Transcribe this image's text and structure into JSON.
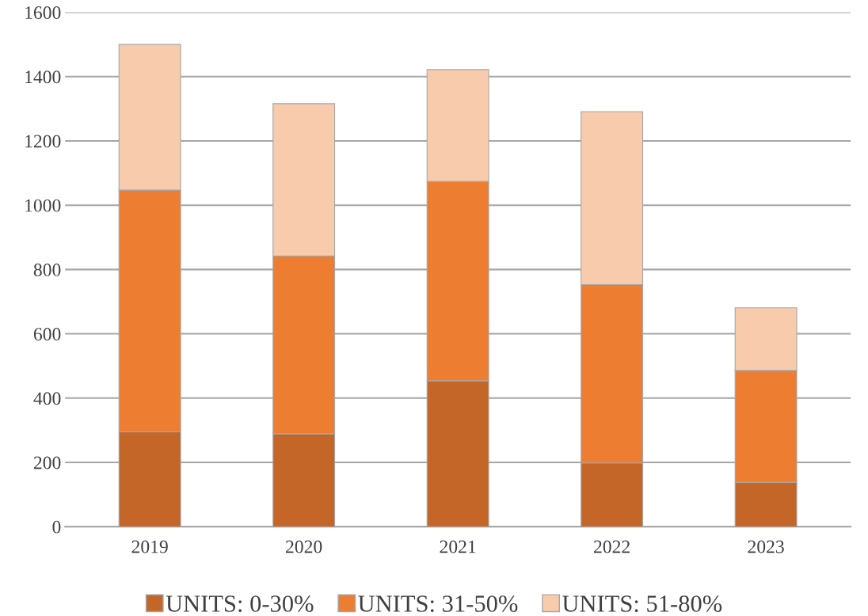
{
  "chart_data": {
    "type": "bar",
    "stacked": true,
    "categories": [
      "2019",
      "2020",
      "2021",
      "2022",
      "2023"
    ],
    "series": [
      {
        "name": "UNITS: 0-30%",
        "color": "#c46627",
        "values": [
          295,
          289,
          454,
          198,
          138
        ]
      },
      {
        "name": "UNITS: 31-50%",
        "color": "#ed7d31",
        "values": [
          752,
          553,
          620,
          555,
          348
        ]
      },
      {
        "name": "UNITS: 51-80%",
        "color": "#f8cbad",
        "values": [
          453,
          474,
          348,
          538,
          195
        ]
      }
    ],
    "ylim": [
      0,
      1600
    ],
    "yticks": [
      0,
      200,
      400,
      600,
      800,
      1000,
      1200,
      1400,
      1600
    ],
    "grid": "y",
    "legend": "bottom"
  }
}
